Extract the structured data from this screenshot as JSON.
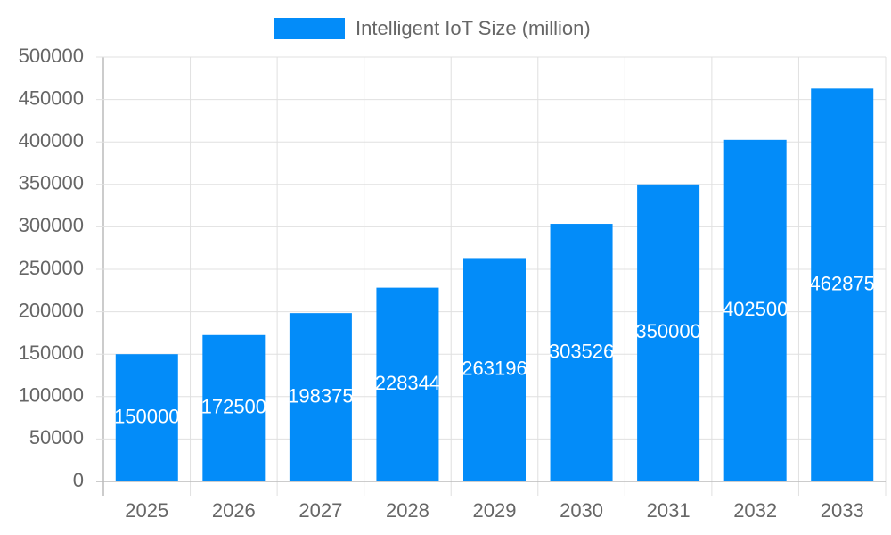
{
  "chart_data": {
    "type": "bar",
    "legend": "Intelligent IoT Size (million)",
    "categories": [
      "2025",
      "2026",
      "2027",
      "2028",
      "2029",
      "2030",
      "2031",
      "2032",
      "2033"
    ],
    "values": [
      150000,
      172500,
      198375,
      228344,
      263196,
      303526,
      350000,
      402500,
      462875
    ],
    "color": "#038cf9",
    "ylim": [
      0,
      500000
    ],
    "yticks": [
      0,
      50000,
      100000,
      150000,
      200000,
      250000,
      300000,
      350000,
      400000,
      450000,
      500000
    ],
    "grid": true,
    "legend_position": "top"
  }
}
